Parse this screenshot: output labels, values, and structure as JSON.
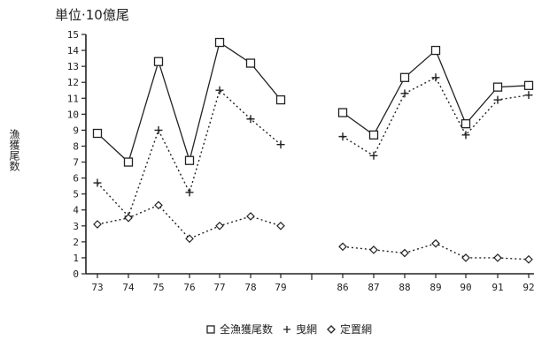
{
  "chart_data": {
    "type": "line",
    "unit_label": "単位·10億尾",
    "ylabel": "漁獲尾数",
    "ylim": [
      0,
      15
    ],
    "yticks": [
      "0",
      "1",
      "2",
      "3",
      "4",
      "5",
      "6",
      "7",
      "8",
      "9",
      "10",
      "11",
      "12",
      "13",
      "14",
      "15"
    ],
    "categories": [
      "73",
      "74",
      "75",
      "76",
      "77",
      "78",
      "79",
      "86",
      "87",
      "88",
      "89",
      "90",
      "91",
      "92"
    ],
    "series": [
      {
        "name": "全漁獲尾数",
        "marker": "square",
        "style": "solid",
        "values": [
          8.8,
          7.0,
          13.3,
          7.1,
          14.5,
          13.2,
          10.9,
          10.1,
          8.7,
          12.3,
          14.0,
          9.4,
          11.7,
          11.8
        ]
      },
      {
        "name": "曳網",
        "marker": "plus",
        "style": "dotted",
        "values": [
          5.7,
          3.6,
          9.0,
          5.1,
          11.5,
          9.7,
          8.1,
          8.6,
          7.4,
          11.3,
          12.3,
          8.7,
          10.9,
          11.2
        ]
      },
      {
        "name": "定置網",
        "marker": "diamond",
        "style": "dotted",
        "values": [
          3.1,
          3.5,
          4.3,
          2.2,
          3.0,
          3.6,
          3.0,
          1.7,
          1.5,
          1.3,
          1.9,
          1.0,
          1.0,
          0.9
        ]
      }
    ],
    "legend_position": "bottom",
    "grid": false,
    "color": "#222222"
  }
}
